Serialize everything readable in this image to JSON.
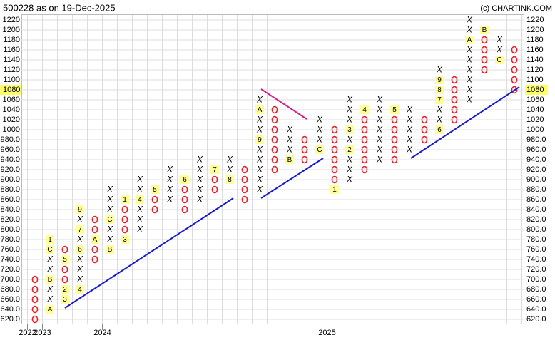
{
  "chart_data": {
    "type": "point-and-figure",
    "title": "500228 as on 19-Dec-2025",
    "credit": "(c) CHARTINK.COM",
    "box_size": 20,
    "ylim": [
      610,
      1230
    ],
    "yticks": [
      {
        "value": 620,
        "label": "620.0"
      },
      {
        "value": 640,
        "label": "640.0"
      },
      {
        "value": 660,
        "label": "660.0"
      },
      {
        "value": 680,
        "label": "680.0"
      },
      {
        "value": 700,
        "label": "700.0"
      },
      {
        "value": 720,
        "label": "720.0"
      },
      {
        "value": 740,
        "label": "740.0"
      },
      {
        "value": 760,
        "label": "760.0"
      },
      {
        "value": 780,
        "label": "780.0"
      },
      {
        "value": 800,
        "label": "800.0"
      },
      {
        "value": 820,
        "label": "820.0"
      },
      {
        "value": 840,
        "label": "840.0"
      },
      {
        "value": 860,
        "label": "860.0"
      },
      {
        "value": 880,
        "label": "880.0"
      },
      {
        "value": 900,
        "label": "900.0"
      },
      {
        "value": 920,
        "label": "920.0"
      },
      {
        "value": 940,
        "label": "940.0"
      },
      {
        "value": 960,
        "label": "960.0"
      },
      {
        "value": 980,
        "label": "980.0"
      },
      1000,
      1020,
      1040,
      1060,
      1080,
      1100,
      1120,
      1140,
      1160,
      1180,
      1200,
      1220
    ],
    "last_price": 1080,
    "grid": true,
    "x_color": "#2e8b57",
    "o_color": "#e8202a",
    "year_marks": [
      {
        "label": "2022",
        "column": 0
      },
      {
        "label": "2023",
        "column": 1
      },
      {
        "label": "2024",
        "column": 5
      },
      {
        "label": "2025",
        "column": 20
      }
    ],
    "columns": [
      {
        "type": "O",
        "high": 700,
        "low": 620,
        "labels": []
      },
      {
        "type": "X",
        "high": 780,
        "low": 640,
        "labels": [
          {
            "value": 640,
            "label": "A"
          },
          {
            "value": 700,
            "label": "B"
          },
          {
            "value": 760,
            "label": "C"
          },
          {
            "value": 780,
            "label": "1"
          }
        ]
      },
      {
        "type": "O",
        "high": 760,
        "low": 660,
        "labels": [
          {
            "value": 740,
            "label": "5"
          },
          {
            "value": 680,
            "label": "2"
          },
          {
            "value": 660,
            "label": "3"
          }
        ]
      },
      {
        "type": "X",
        "high": 840,
        "low": 680,
        "labels": [
          {
            "value": 680,
            "label": "4"
          },
          {
            "value": 760,
            "label": "6"
          },
          {
            "value": 800,
            "label": "7"
          },
          {
            "value": 840,
            "label": "9"
          }
        ]
      },
      {
        "type": "O",
        "high": 820,
        "low": 740,
        "labels": [
          {
            "value": 780,
            "label": "A"
          }
        ]
      },
      {
        "type": "X",
        "high": 880,
        "low": 760,
        "labels": [
          {
            "value": 760,
            "label": "B"
          },
          {
            "value": 820,
            "label": "C"
          }
        ]
      },
      {
        "type": "O",
        "high": 860,
        "low": 780,
        "labels": [
          {
            "value": 860,
            "label": "1"
          },
          {
            "value": 780,
            "label": "3"
          }
        ]
      },
      {
        "type": "X",
        "high": 900,
        "low": 800,
        "labels": [
          {
            "value": 860,
            "label": "4"
          }
        ]
      },
      {
        "type": "O",
        "high": 880,
        "low": 840,
        "labels": [
          {
            "value": 880,
            "label": "5"
          }
        ]
      },
      {
        "type": "X",
        "high": 920,
        "low": 860,
        "labels": []
      },
      {
        "type": "O",
        "high": 900,
        "low": 840,
        "labels": [
          {
            "value": 900,
            "label": "6"
          }
        ]
      },
      {
        "type": "X",
        "high": 940,
        "low": 860,
        "labels": []
      },
      {
        "type": "O",
        "high": 920,
        "low": 880,
        "labels": [
          {
            "value": 920,
            "label": "7"
          }
        ]
      },
      {
        "type": "X",
        "high": 940,
        "low": 900,
        "labels": [
          {
            "value": 900,
            "label": "8"
          }
        ]
      },
      {
        "type": "O",
        "high": 920,
        "low": 860,
        "labels": []
      },
      {
        "type": "X",
        "high": 1060,
        "low": 880,
        "labels": [
          {
            "value": 980,
            "label": "9"
          },
          {
            "value": 1040,
            "label": "A"
          }
        ]
      },
      {
        "type": "O",
        "high": 1040,
        "low": 920,
        "labels": []
      },
      {
        "type": "X",
        "high": 1000,
        "low": 940,
        "labels": [
          {
            "value": 940,
            "label": "B"
          }
        ]
      },
      {
        "type": "O",
        "high": 980,
        "low": 940,
        "labels": []
      },
      {
        "type": "X",
        "high": 1020,
        "low": 960,
        "labels": [
          {
            "value": 960,
            "label": "C"
          }
        ]
      },
      {
        "type": "O",
        "high": 1000,
        "low": 880,
        "labels": [
          {
            "value": 880,
            "label": "1"
          }
        ]
      },
      {
        "type": "X",
        "high": 1060,
        "low": 900,
        "labels": [
          {
            "value": 960,
            "label": "2"
          },
          {
            "value": 1000,
            "label": "3"
          }
        ]
      },
      {
        "type": "O",
        "high": 1040,
        "low": 920,
        "labels": [
          {
            "value": 1040,
            "label": "4"
          }
        ]
      },
      {
        "type": "X",
        "high": 1060,
        "low": 940,
        "labels": []
      },
      {
        "type": "O",
        "high": 1040,
        "low": 940,
        "labels": [
          {
            "value": 1040,
            "label": "5"
          }
        ]
      },
      {
        "type": "X",
        "high": 1040,
        "low": 960,
        "labels": []
      },
      {
        "type": "O",
        "high": 1020,
        "low": 980,
        "labels": []
      },
      {
        "type": "X",
        "high": 1120,
        "low": 1000,
        "labels": [
          {
            "value": 1000,
            "label": "6"
          },
          {
            "value": 1060,
            "label": "7"
          },
          {
            "value": 1080,
            "label": "8"
          },
          {
            "value": 1100,
            "label": "9"
          }
        ]
      },
      {
        "type": "O",
        "high": 1100,
        "low": 1020,
        "labels": []
      },
      {
        "type": "X",
        "high": 1220,
        "low": 1060,
        "labels": [
          {
            "value": 1180,
            "label": "A"
          }
        ]
      },
      {
        "type": "O",
        "high": 1200,
        "low": 1120,
        "labels": [
          {
            "value": 1200,
            "label": "B"
          }
        ]
      },
      {
        "type": "X",
        "high": 1180,
        "low": 1140,
        "labels": [
          {
            "value": 1140,
            "label": "C"
          }
        ]
      },
      {
        "type": "O",
        "high": 1160,
        "low": 1080,
        "labels": []
      }
    ]
  }
}
